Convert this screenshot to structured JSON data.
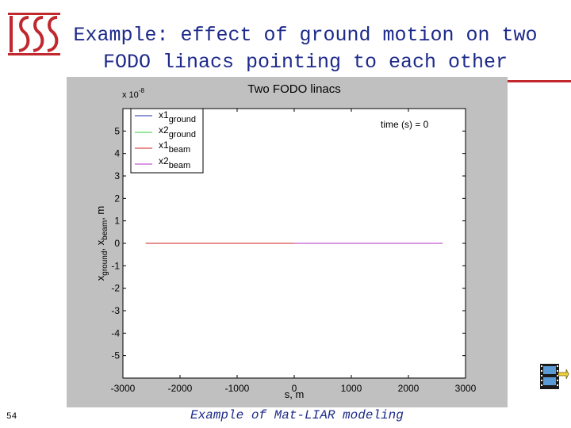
{
  "slide": {
    "title_line1": "Example: effect of ground motion on two",
    "title_line2": "FODO linacs pointing to each other",
    "page_number": "54",
    "footer": "Example of Mat-LIAR modeling"
  },
  "colors": {
    "title": "#1d2a8a",
    "rule": "#c0282d",
    "figure_bg": "#c0c0c0"
  },
  "icons": {
    "logo": "issis-logo",
    "film": "film-strip-icon"
  },
  "chart_data": {
    "type": "line",
    "title": "Two FODO linacs",
    "xlabel": "s, m",
    "ylabel_parts": [
      "x",
      "ground",
      ", x",
      "beam",
      ", m"
    ],
    "scale_factor": "x 10",
    "scale_exponent": "-8",
    "annotation": "time (s) = 0",
    "xlim": [
      -3000,
      3000
    ],
    "ylim": [
      -6,
      6
    ],
    "xticks": [
      -3000,
      -2000,
      -1000,
      0,
      1000,
      2000,
      3000
    ],
    "xtick_labels": [
      "-3000",
      "-2000",
      "-1000",
      "0",
      "1000",
      "2000",
      "3000"
    ],
    "yticks": [
      5,
      4,
      3,
      2,
      1,
      0,
      -1,
      -2,
      -3,
      -4,
      -5
    ],
    "ytick_labels": [
      "5",
      "4",
      "3",
      "2",
      "1",
      "0",
      "-1",
      "-2",
      "-3",
      "-4",
      "-5"
    ],
    "legend_placement": "top-left",
    "grid": false,
    "series": [
      {
        "name": "x1",
        "sub": "ground",
        "color": "#1f2fa8",
        "x": [
          -2600,
          0
        ],
        "y": [
          0,
          0
        ]
      },
      {
        "name": "x2",
        "sub": "ground",
        "color": "#33cc33",
        "x": [
          0,
          2600
        ],
        "y": [
          0,
          0
        ]
      },
      {
        "name": "x1",
        "sub": "beam",
        "color": "#d02020",
        "x": [
          -2600,
          0
        ],
        "y": [
          0,
          0
        ]
      },
      {
        "name": "x2",
        "sub": "beam",
        "color": "#b030c0",
        "x": [
          0,
          2600
        ],
        "y": [
          0,
          0
        ]
      }
    ]
  }
}
